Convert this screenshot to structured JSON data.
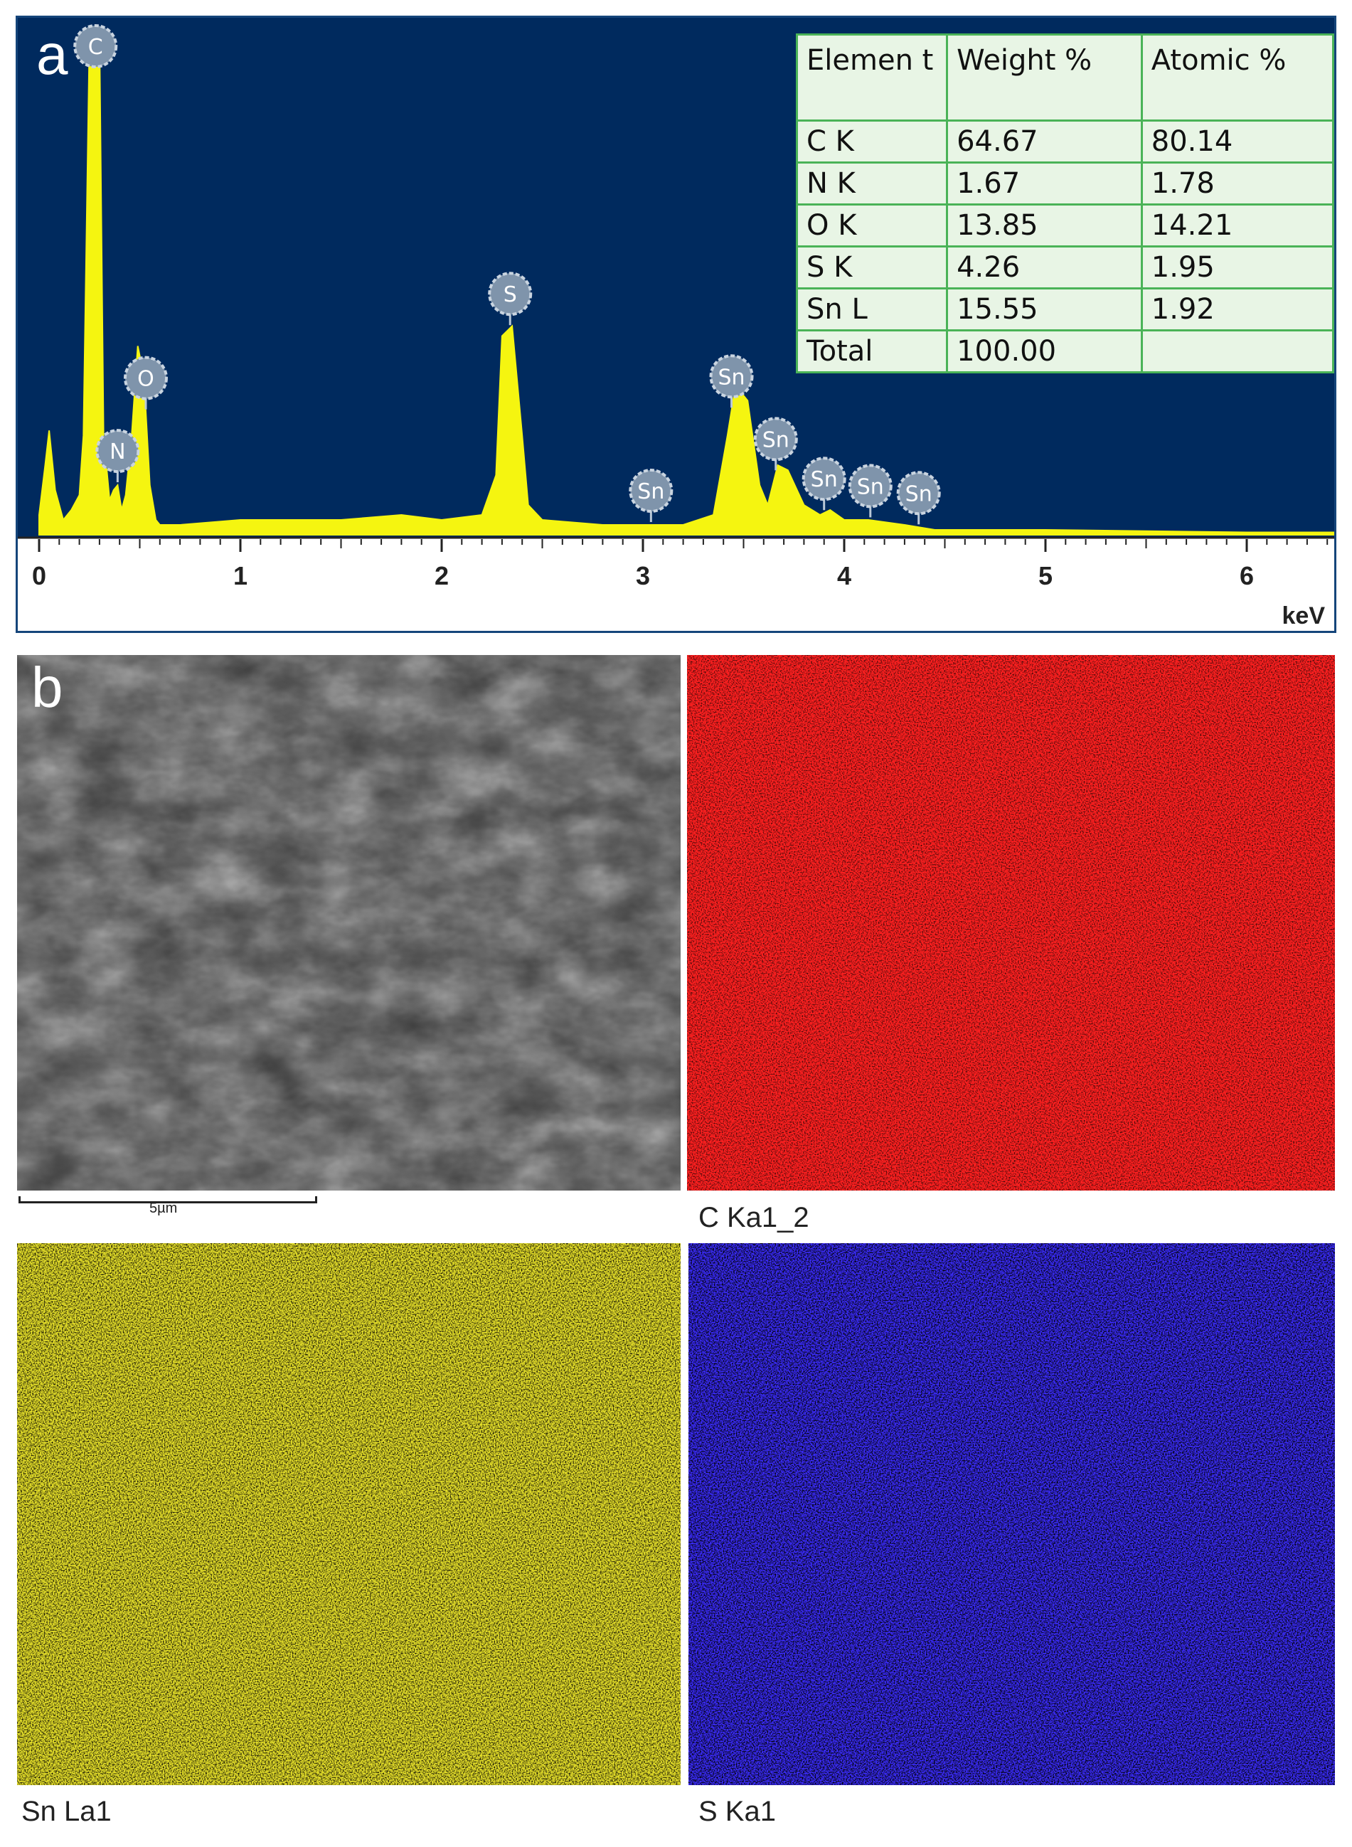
{
  "panel_a": {
    "letter": "a"
  },
  "panel_b": {
    "letter": "b"
  },
  "chart_data": {
    "type": "line",
    "title": "",
    "xlabel": "keV",
    "ylabel": "",
    "xlim": [
      0,
      6.5
    ],
    "ylim": [
      0,
      100
    ],
    "x_ticks": [
      0,
      1,
      2,
      3,
      4,
      5,
      6
    ],
    "x_tick_labels": [
      "0",
      "1",
      "2",
      "3",
      "4",
      "5",
      "6"
    ],
    "grid": false,
    "background_color": "#002a5e",
    "series_color": "#f5f510",
    "series": [
      {
        "x": [
          0.0,
          0.03,
          0.05,
          0.08,
          0.12,
          0.16,
          0.2,
          0.22,
          0.25,
          0.28,
          0.3,
          0.32,
          0.35,
          0.37,
          0.39,
          0.41,
          0.43,
          0.46,
          0.49,
          0.52,
          0.55,
          0.58,
          0.6,
          0.7,
          1.0,
          1.5,
          1.8,
          2.0,
          2.2,
          2.27,
          2.3,
          2.35,
          2.4,
          2.43,
          2.5,
          2.8,
          3.2,
          3.35,
          3.42,
          3.46,
          3.52,
          3.58,
          3.62,
          3.67,
          3.72,
          3.8,
          3.88,
          3.93,
          4.0,
          4.12,
          4.3,
          4.45,
          5.0,
          6.0,
          6.5
        ],
        "y": [
          4,
          14,
          21,
          9,
          3,
          5,
          8,
          20,
          100,
          100,
          100,
          20,
          7,
          9,
          10,
          5,
          8,
          20,
          38,
          32,
          10,
          3,
          2,
          2,
          3,
          3,
          4,
          3,
          4,
          12,
          40,
          42,
          20,
          6,
          3,
          2,
          2,
          4,
          20,
          30,
          27,
          10,
          6,
          14,
          13,
          6,
          4,
          5,
          3,
          3,
          2,
          1,
          1,
          0.5,
          0.5
        ]
      }
    ],
    "peak_labels": [
      {
        "element": "C",
        "energy": 0.28
      },
      {
        "element": "N",
        "energy": 0.39
      },
      {
        "element": "O",
        "energy": 0.53
      },
      {
        "element": "S",
        "energy": 2.34
      },
      {
        "element": "Sn",
        "energy": 3.04
      },
      {
        "element": "Sn",
        "energy": 3.44
      },
      {
        "element": "Sn",
        "energy": 3.66
      },
      {
        "element": "Sn",
        "energy": 3.9
      },
      {
        "element": "Sn",
        "energy": 4.13
      },
      {
        "element": "Sn",
        "energy": 4.37
      }
    ]
  },
  "table": {
    "header": [
      "Elemen t",
      "Weight %",
      "Atomic %"
    ],
    "rows": [
      [
        "C K",
        "64.67",
        "80.14"
      ],
      [
        "N K",
        "1.67",
        "1.78"
      ],
      [
        "O K",
        "13.85",
        "14.21"
      ],
      [
        "S K",
        "4.26",
        "1.95"
      ],
      [
        "Sn L",
        "15.55",
        "1.92"
      ],
      [
        "Total",
        "100.00",
        ""
      ]
    ]
  },
  "maps": {
    "sem": {
      "scale_bar_label": "5µm"
    },
    "c": {
      "label": "C Ka1_2",
      "color": "#ff1a1a"
    },
    "sn": {
      "label": "Sn La1",
      "color": "#e8e22a"
    },
    "s": {
      "label": "S Ka1",
      "color": "#3c2dff"
    }
  }
}
